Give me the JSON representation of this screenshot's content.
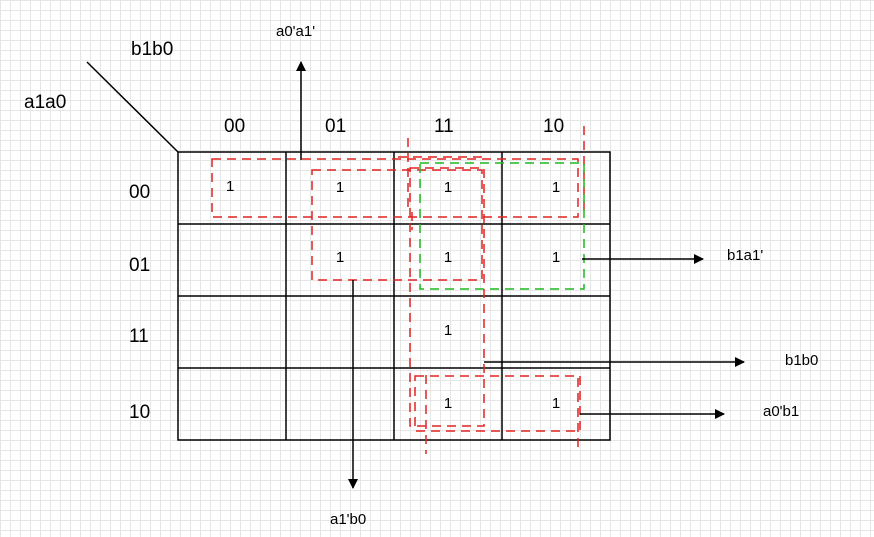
{
  "axis": {
    "col_var": "b1b0",
    "row_var": "a1a0"
  },
  "columns": [
    "00",
    "01",
    "11",
    "10"
  ],
  "rows": [
    "00",
    "01",
    "11",
    "10"
  ],
  "cells": [
    [
      "1",
      "1",
      "1",
      "1"
    ],
    [
      "",
      "1",
      "1",
      "1"
    ],
    [
      "",
      "",
      "1",
      ""
    ],
    [
      "",
      "",
      "1",
      "1"
    ]
  ],
  "terms": {
    "top": "a0'a1'",
    "right_1": "b1a1'",
    "right_2": "b1b0",
    "right_3": "a0'b1",
    "bottom": "a1'b0"
  },
  "colors": {
    "grid": "#000000",
    "group_red": "#e02424",
    "group_green": "#1fb81f",
    "arrow": "#000000"
  }
}
